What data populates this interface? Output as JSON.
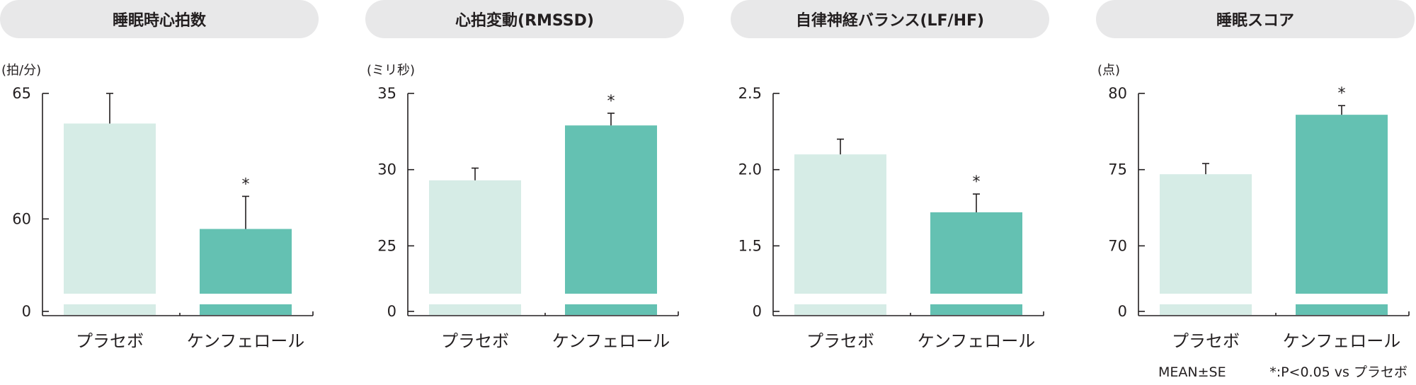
{
  "colors": {
    "title_pill": "#e8e8e9",
    "placebo": "#d6ece6",
    "kenferol": "#64c1b2",
    "text": "#231f20"
  },
  "footnote": {
    "mean_se": "MEAN±SE",
    "significance": "*:P<0.05 vs プラセボ"
  },
  "chart_data": [
    {
      "type": "bar",
      "title": "睡眠時心拍数",
      "unit": "(拍/分)",
      "categories": [
        "プラセボ",
        "ケンフェロール"
      ],
      "values": [
        63.8,
        59.6
      ],
      "errors": [
        1.2,
        1.3
      ],
      "significant": [
        false,
        true
      ],
      "ylim": [
        57.5,
        65
      ],
      "ticks": [
        60,
        65
      ],
      "tick_labels": [
        "60",
        "65"
      ],
      "break_label": "0",
      "star": "*"
    },
    {
      "type": "bar",
      "title": "心拍変動(RMSSD)",
      "unit": "(ミリ秒)",
      "categories": [
        "プラセボ",
        "ケンフェロール"
      ],
      "values": [
        29.3,
        32.9
      ],
      "errors": [
        0.8,
        0.8
      ],
      "significant": [
        false,
        true
      ],
      "ylim": [
        22,
        35
      ],
      "ticks": [
        25,
        30,
        35
      ],
      "tick_labels": [
        "25",
        "30",
        "35"
      ],
      "break_label": "0",
      "star": "*"
    },
    {
      "type": "bar",
      "title": "自律神経バランス(LF/HF)",
      "unit": "",
      "categories": [
        "プラセボ",
        "ケンフェロール"
      ],
      "values": [
        2.1,
        1.72
      ],
      "errors": [
        0.1,
        0.12
      ],
      "significant": [
        false,
        true
      ],
      "ylim": [
        1.2,
        2.5
      ],
      "ticks": [
        1.5,
        2.0,
        2.5
      ],
      "tick_labels": [
        "1.5",
        "2.0",
        "2.5"
      ],
      "break_label": "0",
      "star": "*"
    },
    {
      "type": "bar",
      "title": "睡眠スコア",
      "unit": "(点)",
      "categories": [
        "プラセボ",
        "ケンフェロール"
      ],
      "values": [
        74.7,
        78.6
      ],
      "errors": [
        0.7,
        0.6
      ],
      "significant": [
        false,
        true
      ],
      "ylim": [
        67,
        80
      ],
      "ticks": [
        70,
        75,
        80
      ],
      "tick_labels": [
        "70",
        "75",
        "80"
      ],
      "break_label": "0",
      "star": "*"
    }
  ]
}
